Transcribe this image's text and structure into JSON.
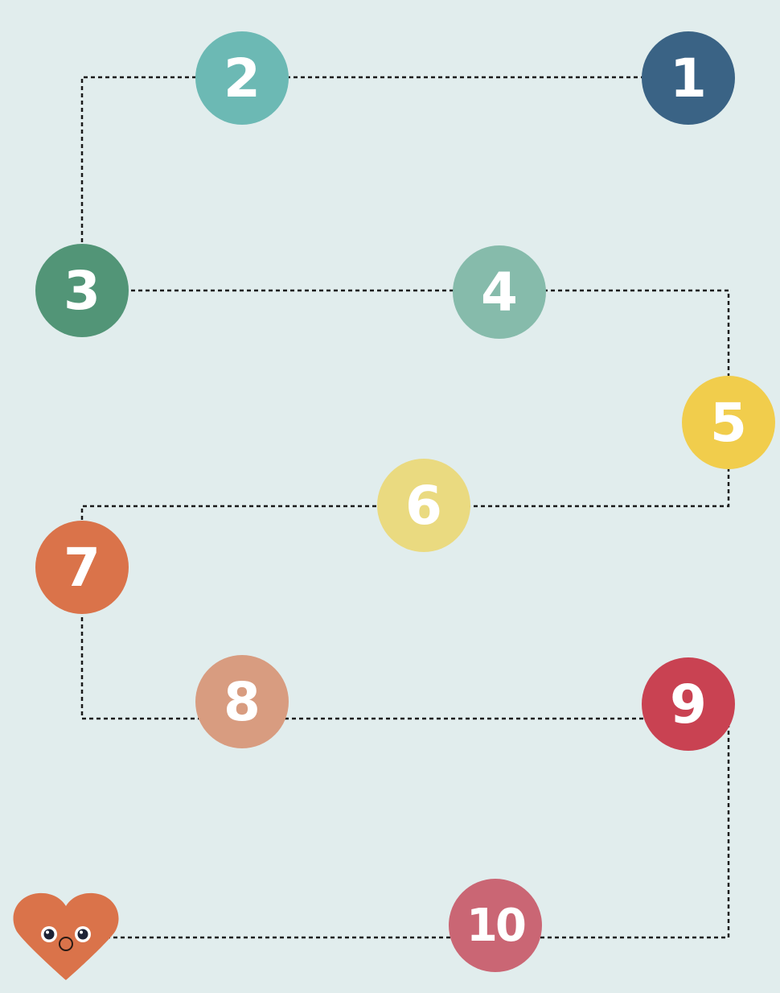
{
  "board": {
    "background": "#e1eded",
    "path_style": "dotted",
    "nodes": [
      {
        "label": "1",
        "color": "#3a6385"
      },
      {
        "label": "2",
        "color": "#6cb9b4"
      },
      {
        "label": "3",
        "color": "#529577"
      },
      {
        "label": "4",
        "color": "#86bbab"
      },
      {
        "label": "5",
        "color": "#f1cd4c"
      },
      {
        "label": "6",
        "color": "#eada80"
      },
      {
        "label": "7",
        "color": "#da734a"
      },
      {
        "label": "8",
        "color": "#d89c80"
      },
      {
        "label": "9",
        "color": "#c94252"
      },
      {
        "label": "10",
        "color": "#ca6674"
      }
    ]
  },
  "player": {
    "icon": "heart-character-icon",
    "color": "#da734a"
  }
}
